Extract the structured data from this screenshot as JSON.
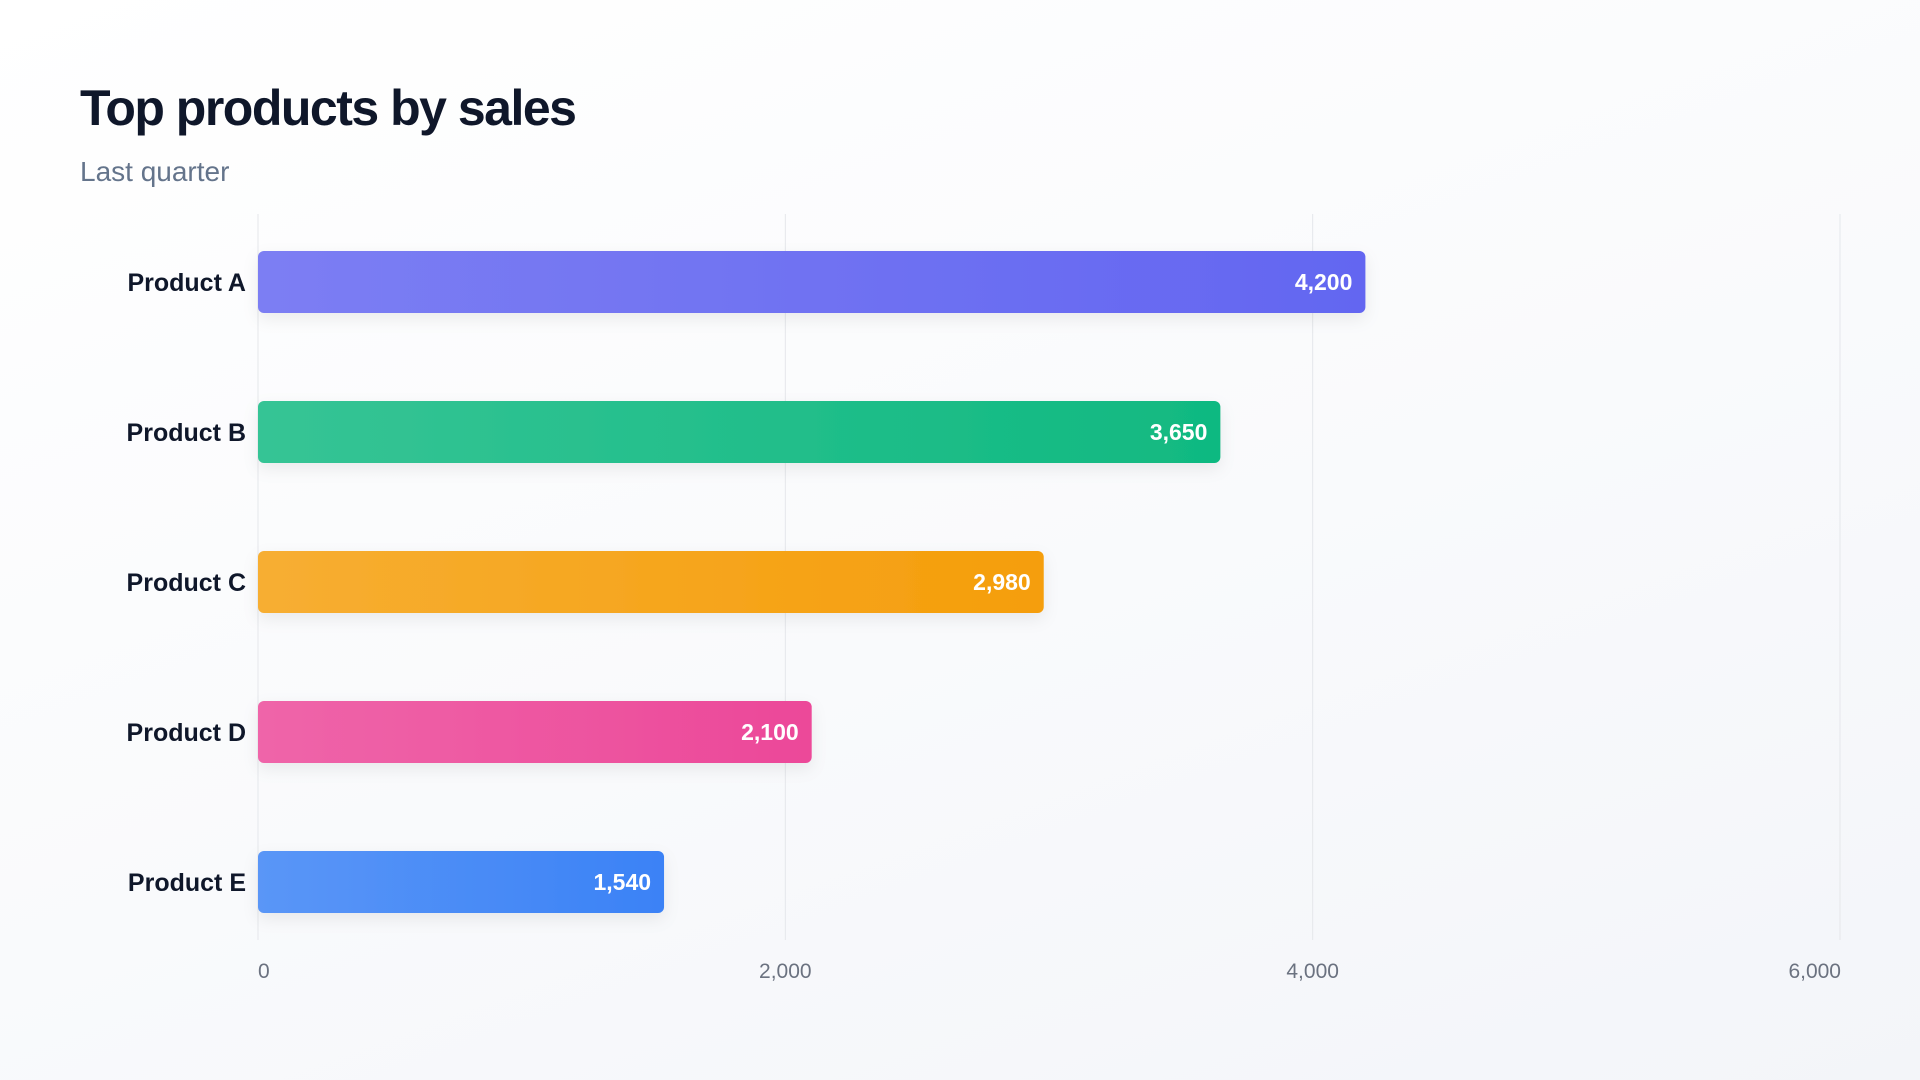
{
  "chart_data": {
    "type": "bar",
    "orientation": "horizontal",
    "title": "Top products by sales",
    "subtitle": "Last quarter",
    "categories": [
      "Product A",
      "Product B",
      "Product C",
      "Product D",
      "Product E"
    ],
    "values": [
      4200,
      3650,
      2980,
      2100,
      1540
    ],
    "value_labels": [
      "4,200",
      "3,650",
      "2,980",
      "2,100",
      "1,540"
    ],
    "colors": [
      "#6366f1",
      "#10b981",
      "#f59e0b",
      "#ec4899",
      "#3b82f6"
    ],
    "xlim": [
      0,
      6000
    ],
    "xticks": [
      0,
      2000,
      4000,
      6000
    ],
    "xtick_labels": [
      "0",
      "2,000",
      "4,000",
      "6,000"
    ],
    "grid": true,
    "legend": "none"
  }
}
